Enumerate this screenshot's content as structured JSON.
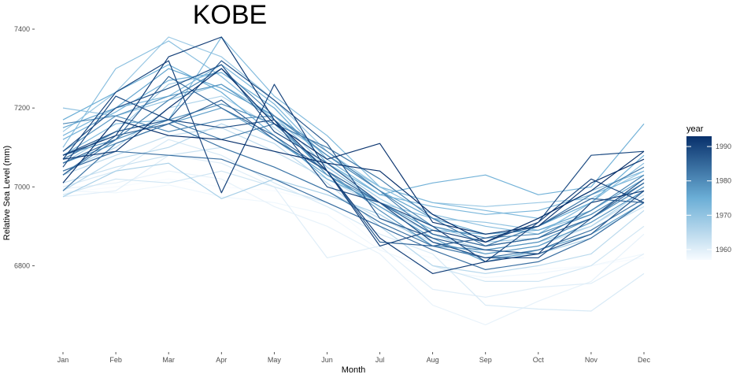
{
  "chart_data": {
    "type": "line",
    "title": "KOBE",
    "xlabel": "Month",
    "ylabel": "Relative Sea Level (mm)",
    "categories": [
      "Jan",
      "Feb",
      "Mar",
      "Apr",
      "May",
      "Jun",
      "Jul",
      "Aug",
      "Sep",
      "Oct",
      "Nov",
      "Dec"
    ],
    "y_ticks": [
      6800,
      7000,
      7200,
      7400
    ],
    "ylim": [
      6625,
      7420
    ],
    "grid": false,
    "legend": {
      "title": "year",
      "position": "right",
      "type": "colorbar",
      "ticks": [
        1960,
        1970,
        1980,
        1990
      ],
      "range": [
        1957,
        1993
      ],
      "color_low": "#f7fbff",
      "color_high": "#08306b"
    },
    "series": [
      {
        "year": 1957,
        "values": [
          6985,
          7000,
          7020,
          7000,
          6990,
          6960,
          6850,
          6820,
          6800,
          6790,
          6800,
          6820
        ]
      },
      {
        "year": 1958,
        "values": [
          6990,
          6985,
          7005,
          6975,
          6960,
          6930,
          6840,
          6790,
          6770,
          6780,
          6800,
          6830
        ]
      },
      {
        "year": 1959,
        "values": [
          6995,
          7010,
          7040,
          7020,
          6950,
          6900,
          6830,
          6700,
          6650,
          6710,
          6760,
          6880
        ]
      },
      {
        "year": 1960,
        "values": [
          6975,
          6990,
          7080,
          7060,
          7000,
          6820,
          6850,
          6740,
          6720,
          6745,
          6755,
          6830
        ]
      },
      {
        "year": 1961,
        "values": [
          7000,
          7040,
          7120,
          7080,
          7010,
          6950,
          6880,
          6830,
          6700,
          6690,
          6685,
          6780
        ]
      },
      {
        "year": 1962,
        "values": [
          6980,
          7020,
          7010,
          7040,
          7000,
          6960,
          6900,
          6800,
          6760,
          6760,
          6800,
          6900
        ]
      },
      {
        "year": 1963,
        "values": [
          7010,
          7050,
          7080,
          7100,
          7050,
          6990,
          6920,
          6860,
          6820,
          6830,
          6880,
          6950
        ]
      },
      {
        "year": 1964,
        "values": [
          7030,
          7080,
          7130,
          7150,
          7090,
          7020,
          6950,
          6880,
          6830,
          6850,
          6900,
          6980
        ]
      },
      {
        "year": 1965,
        "values": [
          6990,
          7070,
          7100,
          7160,
          7110,
          7010,
          6900,
          6800,
          6780,
          6800,
          6830,
          6940
        ]
      },
      {
        "year": 1966,
        "values": [
          7040,
          7100,
          7200,
          7230,
          7150,
          7050,
          6960,
          6880,
          6840,
          6860,
          6900,
          6990
        ]
      },
      {
        "year": 1967,
        "values": [
          6975,
          7040,
          7060,
          6970,
          7020,
          6980,
          6930,
          6850,
          6820,
          6830,
          6870,
          6960
        ]
      },
      {
        "year": 1968,
        "values": [
          7060,
          7140,
          7260,
          7290,
          7200,
          7060,
          6970,
          6900,
          6860,
          6870,
          6920,
          7000
        ]
      },
      {
        "year": 1969,
        "values": [
          7140,
          7240,
          7380,
          7330,
          7220,
          7090,
          7000,
          6960,
          6950,
          6960,
          6970,
          7040
        ]
      },
      {
        "year": 1970,
        "values": [
          7200,
          7180,
          7220,
          7260,
          7180,
          7050,
          6960,
          6920,
          6910,
          6890,
          6930,
          7010
        ]
      },
      {
        "year": 1971,
        "values": [
          7100,
          7300,
          7370,
          7280,
          7170,
          7080,
          7000,
          6930,
          6900,
          6880,
          6960,
          7060
        ]
      },
      {
        "year": 1972,
        "values": [
          7080,
          7160,
          7170,
          7380,
          7230,
          7130,
          7000,
          6960,
          6940,
          6920,
          6990,
          7040
        ]
      },
      {
        "year": 1973,
        "values": [
          7130,
          7200,
          7230,
          7310,
          7210,
          7070,
          6980,
          6950,
          6930,
          6940,
          6980,
          7030
        ]
      },
      {
        "year": 1974,
        "values": [
          7120,
          7190,
          7270,
          7290,
          7200,
          7060,
          6980,
          7010,
          7030,
          6980,
          7000,
          7160
        ]
      },
      {
        "year": 1975,
        "values": [
          7170,
          7240,
          7310,
          7240,
          7130,
          7020,
          6960,
          6890,
          6880,
          6900,
          6960,
          7080
        ]
      },
      {
        "year": 1976,
        "values": [
          7150,
          7200,
          7300,
          7250,
          7180,
          7080,
          6990,
          6920,
          6880,
          6890,
          6940,
          7020
        ]
      },
      {
        "year": 1977,
        "values": [
          7060,
          7110,
          7160,
          7200,
          7120,
          7030,
          6950,
          6870,
          6810,
          6840,
          6880,
          6960
        ]
      },
      {
        "year": 1978,
        "values": [
          7090,
          7180,
          7230,
          7260,
          7170,
          7030,
          6960,
          6860,
          6830,
          6850,
          6910,
          6990
        ]
      },
      {
        "year": 1979,
        "values": [
          7080,
          7120,
          7170,
          7210,
          7160,
          7040,
          6940,
          6850,
          6840,
          6860,
          6920,
          7000
        ]
      },
      {
        "year": 1980,
        "values": [
          7160,
          7180,
          7140,
          7170,
          7180,
          7080,
          6990,
          6900,
          6870,
          6880,
          6930,
          7010
        ]
      },
      {
        "year": 1981,
        "values": [
          7030,
          7120,
          7220,
          7300,
          7180,
          7090,
          6990,
          6880,
          6850,
          6870,
          6940,
          7030
        ]
      },
      {
        "year": 1982,
        "values": [
          7070,
          7140,
          7170,
          7120,
          7160,
          7100,
          7020,
          6920,
          6850,
          6900,
          6980,
          7050
        ]
      },
      {
        "year": 1983,
        "values": [
          6990,
          7110,
          7160,
          7100,
          7050,
          6990,
          6910,
          6850,
          6820,
          6840,
          6890,
          6970
        ]
      },
      {
        "year": 1984,
        "values": [
          7040,
          7090,
          7080,
          7070,
          7020,
          6960,
          6900,
          6840,
          6790,
          6810,
          6870,
          6960
        ]
      },
      {
        "year": 1985,
        "values": [
          7060,
          7120,
          7280,
          7200,
          7130,
          7040,
          6960,
          6880,
          6850,
          6870,
          6920,
          7010
        ]
      },
      {
        "year": 1986,
        "values": [
          7030,
          7130,
          7160,
          7220,
          7120,
          7040,
          6860,
          6850,
          6870,
          6900,
          6970,
          6960
        ]
      },
      {
        "year": 1987,
        "values": [
          7080,
          7140,
          7170,
          7320,
          7220,
          7110,
          6920,
          6870,
          6840,
          6830,
          6880,
          6990
        ]
      },
      {
        "year": 1988,
        "values": [
          7090,
          7200,
          7250,
          7310,
          7140,
          7060,
          6960,
          6860,
          6820,
          6820,
          6920,
          7020
        ]
      },
      {
        "year": 1989,
        "values": [
          7050,
          7230,
          7170,
          7150,
          7170,
          7000,
          6960,
          6900,
          6810,
          6910,
          7080,
          7090
        ]
      },
      {
        "year": 1990,
        "values": [
          7070,
          7240,
          7320,
          6985,
          7260,
          7040,
          6850,
          6890,
          6860,
          6910,
          7020,
          6960
        ]
      },
      {
        "year": 1991,
        "values": [
          7080,
          7130,
          7330,
          7380,
          7170,
          7040,
          6870,
          6780,
          6810,
          6830,
          6960,
          6990
        ]
      },
      {
        "year": 1992,
        "values": [
          7070,
          7090,
          7200,
          7300,
          7160,
          7070,
          7110,
          6910,
          6880,
          6900,
          7010,
          7070
        ]
      },
      {
        "year": 1993,
        "values": [
          7010,
          7170,
          7130,
          7120,
          7090,
          7060,
          7040,
          6930,
          6860,
          6920,
          6990,
          7090
        ]
      }
    ]
  }
}
